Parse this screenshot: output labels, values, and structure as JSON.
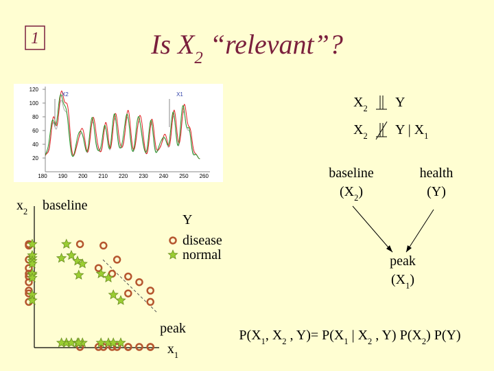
{
  "slide_number": "1",
  "title": [
    "Is X",
    "2",
    " “relevant”?"
  ],
  "spectrum": {
    "labels": [
      "X2",
      "X1"
    ],
    "ylim": [
      0,
      125
    ],
    "xlim": [
      177,
      262
    ],
    "yticks": [
      120,
      100,
      80,
      60,
      40,
      20
    ],
    "xticks": [
      180,
      190,
      200,
      210,
      220,
      230,
      240,
      250,
      260
    ]
  },
  "independence": [
    {
      "left": [
        "X",
        "2"
      ],
      "right": [
        "Y"
      ]
    },
    {
      "left": [
        "X",
        "2"
      ],
      "right": [
        "Y | X",
        "1"
      ]
    }
  ],
  "graph": {
    "nodes": [
      {
        "name": "baseline",
        "symbol": [
          "(X",
          "2",
          ")"
        ]
      },
      {
        "name": "health",
        "symbol": [
          "(Y)"
        ]
      },
      {
        "name": "peak",
        "symbol": [
          "(X",
          "1",
          ")"
        ]
      }
    ]
  },
  "scatter": {
    "y_label": [
      "x",
      "2"
    ],
    "y_name": "baseline",
    "x_label": [
      "x",
      "1"
    ],
    "x_name": "peak",
    "legend_title": "Y",
    "xlim": [
      0,
      100
    ],
    "ylim": [
      0,
      100
    ],
    "series": [
      {
        "name": "disease",
        "color": "#b5562f",
        "marker": "circle",
        "x": [
          37,
          56,
          67,
          52,
          63,
          76,
          85,
          76,
          94,
          94
        ],
        "y": [
          73,
          72,
          62,
          56,
          52,
          50,
          46,
          38,
          40,
          32
        ]
      },
      {
        "name": "normal",
        "color": "#9acd32",
        "marker": "star",
        "x": [
          26,
          22,
          30,
          35,
          39,
          36,
          54,
          60,
          64,
          70
        ],
        "y": [
          73,
          63,
          65,
          61,
          59,
          51,
          52,
          49,
          37,
          33
        ]
      }
    ]
  },
  "formula": [
    "P(X",
    "1",
    ", X",
    "2",
    " , Y)= P(X",
    "1",
    " | X",
    "2",
    " , Y) P(X",
    "2",
    ") P(Y)"
  ]
}
